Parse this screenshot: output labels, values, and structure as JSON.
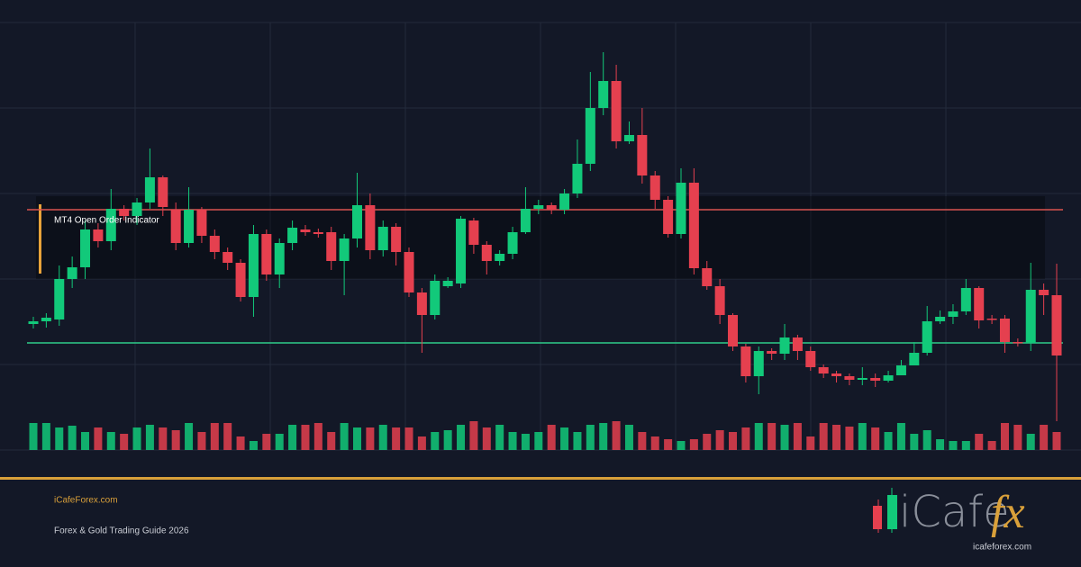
{
  "chart_data": {
    "type": "candlestick",
    "open": [
      140,
      143,
      145,
      190,
      203,
      245,
      232,
      268,
      260,
      275,
      303,
      267,
      230,
      267,
      238,
      220,
      208,
      170,
      240,
      195,
      230,
      245,
      242,
      242,
      210,
      235,
      272,
      222,
      248,
      220,
      175,
      150,
      182,
      185,
      255,
      228,
      210,
      218,
      242,
      268,
      272,
      267,
      285,
      318,
      380,
      410,
      343,
      350,
      305,
      278,
      240,
      297,
      202,
      182,
      150,
      115,
      82,
      110,
      107,
      125,
      110,
      92,
      85,
      82,
      78,
      80,
      77,
      83,
      94,
      108,
      143,
      148,
      154,
      180,
      146,
      146,
      120,
      119,
      178,
      172
    ],
    "high": [
      148,
      152,
      205,
      215,
      255,
      252,
      290,
      272,
      280,
      335,
      305,
      275,
      292,
      270,
      245,
      225,
      212,
      250,
      245,
      235,
      255,
      250,
      246,
      248,
      240,
      308,
      285,
      255,
      252,
      225,
      180,
      195,
      192,
      260,
      258,
      232,
      222,
      248,
      292,
      278,
      275,
      290,
      345,
      420,
      442,
      428,
      365,
      380,
      310,
      282,
      313,
      313,
      210,
      190,
      152,
      118,
      115,
      113,
      140,
      128,
      115,
      95,
      88,
      85,
      92,
      85,
      88,
      100,
      120,
      160,
      155,
      162,
      190,
      182,
      150,
      150,
      124,
      208,
      185,
      207
    ],
    "low": [
      135,
      136,
      138,
      180,
      190,
      225,
      222,
      255,
      250,
      268,
      260,
      222,
      225,
      230,
      212,
      200,
      165,
      148,
      188,
      180,
      222,
      238,
      236,
      200,
      172,
      225,
      212,
      215,
      205,
      170,
      108,
      145,
      180,
      180,
      218,
      195,
      205,
      212,
      240,
      262,
      262,
      262,
      280,
      310,
      372,
      335,
      340,
      296,
      268,
      236,
      235,
      195,
      178,
      140,
      110,
      75,
      62,
      100,
      100,
      100,
      88,
      80,
      75,
      72,
      72,
      70,
      75,
      85,
      95,
      105,
      140,
      140,
      150,
      135,
      140,
      108,
      115,
      110,
      150,
      32
    ],
    "close": [
      143,
      147,
      190,
      203,
      245,
      232,
      268,
      260,
      275,
      303,
      270,
      230,
      267,
      238,
      220,
      208,
      170,
      240,
      195,
      230,
      247,
      242,
      240,
      210,
      235,
      272,
      222,
      248,
      220,
      175,
      150,
      188,
      188,
      257,
      228,
      210,
      218,
      242,
      268,
      272,
      267,
      285,
      318,
      380,
      410,
      343,
      350,
      305,
      278,
      240,
      297,
      202,
      182,
      150,
      115,
      82,
      110,
      107,
      125,
      110,
      92,
      85,
      82,
      78,
      80,
      77,
      83,
      94,
      108,
      143,
      148,
      154,
      180,
      144,
      145,
      120,
      119,
      178,
      172,
      105
    ],
    "volume": [
      30,
      30,
      25,
      27,
      20,
      25,
      20,
      18,
      25,
      28,
      25,
      22,
      30,
      20,
      30,
      30,
      15,
      10,
      18,
      18,
      28,
      28,
      30,
      20,
      30,
      25,
      25,
      28,
      25,
      25,
      15,
      20,
      22,
      28,
      32,
      25,
      28,
      20,
      18,
      20,
      28,
      25,
      20,
      28,
      30,
      32,
      28,
      20,
      15,
      12,
      10,
      12,
      18,
      22,
      20,
      25,
      30,
      30,
      28,
      30,
      15,
      30,
      28,
      26,
      30,
      25,
      20,
      30,
      18,
      22,
      12,
      10,
      10,
      18,
      10,
      30,
      28,
      18,
      28,
      20
    ],
    "up_color": "#12c97a",
    "down_color": "#e5404f",
    "ylim": [
      0,
      475
    ],
    "yticks": [
      0,
      95,
      190,
      285,
      380,
      475
    ],
    "grid": true,
    "vlim": [
      0,
      100
    ],
    "levels": [
      {
        "value": 267,
        "color": "#d9534f"
      },
      {
        "value": 119,
        "color": "#2ecc8a"
      }
    ],
    "annotation": "MT4 Open Order Indicator"
  },
  "footer": {
    "site": "iCafeForex.com",
    "subtitle": "Forex & Gold Trading Guide 2026"
  },
  "logo": {
    "word": "iCafe",
    "accent": "fx",
    "url": "icafeforex.com"
  }
}
